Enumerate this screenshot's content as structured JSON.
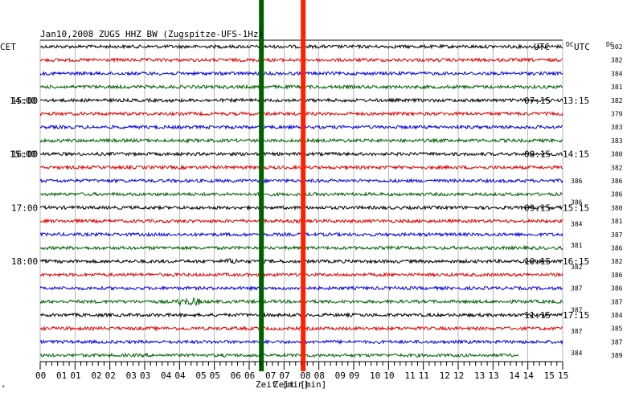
{
  "header": {
    "title": "Jan10,2008   ZUGS HHZ BW (Zugspitze-UFS-1Hz)",
    "left_zone": "CET",
    "right_zone_1": "UTC",
    "right_zone_2": "UTC",
    "dc_1": "DC",
    "dc_2": "DC"
  },
  "chart_data": {
    "type": "line",
    "title": "Jan10,2008   ZUGS HHZ BW (Zugspitze-UFS-1Hz)",
    "xlabel": "Zeit [min]",
    "xlim": [
      0,
      15
    ],
    "x_ticks": [
      "00",
      "01",
      "02",
      "03",
      "04",
      "05",
      "06",
      "07",
      "08",
      "09",
      "10",
      "11",
      "12",
      "13",
      "14",
      "15"
    ],
    "trace_colors": [
      "#000000",
      "#e00000",
      "#0000e0",
      "#006000"
    ],
    "left_labels": [
      "15:00",
      "16:00",
      "17:00",
      "18:00"
    ],
    "left_labels_overlay": [
      "14:00",
      "15:00"
    ],
    "right_labels_overlay": [
      "07:15",
      "08:15",
      "09:15",
      "10:15",
      "11:15"
    ],
    "right_labels": [
      "13:15",
      "14:15",
      "15:15",
      "16:15",
      "17:15"
    ],
    "dc_values_col1": [
      302,
      382,
      384,
      381,
      382,
      379,
      383,
      383,
      380,
      382,
      386,
      386,
      380,
      381,
      387,
      386,
      382,
      386,
      386,
      387,
      384,
      385,
      387,
      389
    ],
    "dc_values_col2": [
      386,
      386,
      384,
      381,
      382,
      387,
      387,
      387,
      384
    ],
    "markers": [
      {
        "x": 6.35,
        "color": "#006000",
        "label": "green"
      },
      {
        "x": 7.55,
        "color": "#ff2000",
        "label": "red"
      }
    ]
  }
}
